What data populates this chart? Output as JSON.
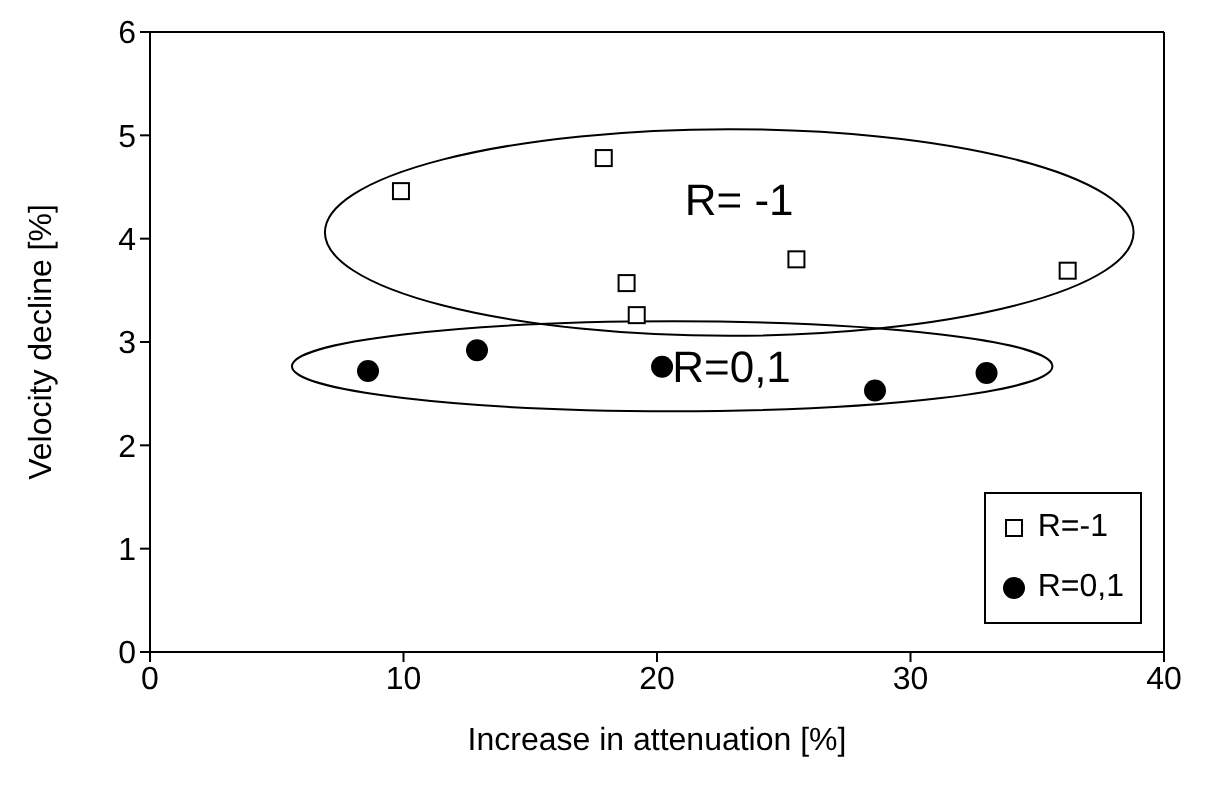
{
  "chart_data": {
    "type": "scatter",
    "xlabel": "Increase in attenuation [%]",
    "ylabel": "Velocity decline [%]",
    "xlim": [
      0,
      40
    ],
    "xticks": [
      0,
      10,
      20,
      30,
      40
    ],
    "ylim": [
      0,
      6
    ],
    "yticks": [
      0,
      1,
      2,
      3,
      4,
      5,
      6
    ],
    "grid": false,
    "legend": "bottom right",
    "series": [
      {
        "name": "R=-1",
        "color": "#000000",
        "marker": "square",
        "x": [
          9.9,
          17.9,
          18.8,
          19.2,
          25.5,
          36.2
        ],
        "values": [
          4.46,
          4.78,
          3.57,
          3.26,
          3.8,
          3.69
        ]
      },
      {
        "name": "R=0,1",
        "color": "#000000",
        "marker": "circle",
        "x": [
          8.6,
          12.9,
          20.2,
          28.6,
          33.0
        ],
        "values": [
          2.72,
          2.92,
          2.76,
          2.53,
          2.7
        ]
      }
    ],
    "annotations": [
      "R= -1",
      "R=0,1"
    ]
  }
}
